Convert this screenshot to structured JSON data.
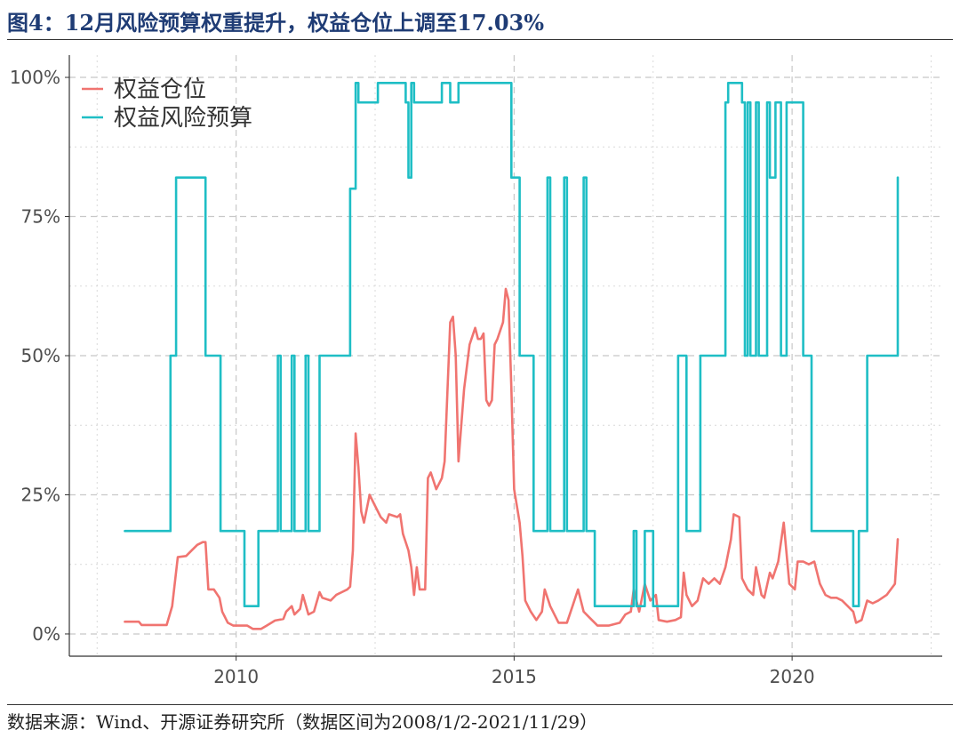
{
  "header": {
    "title": "图4：12月风险预算权重提升，权益仓位上调至17.03%"
  },
  "footer": {
    "source": "数据来源：Wind、开源证券研究所（数据区间为2008/1/2-2021/11/29）"
  },
  "chart_data": {
    "type": "line",
    "title": "图4：12月风险预算权重提升，权益仓位上调至17.03%",
    "xlabel": "",
    "ylabel": "",
    "x_ticks": [
      "2010",
      "2015",
      "2020"
    ],
    "y_ticks": [
      "0%",
      "25%",
      "50%",
      "75%",
      "100%"
    ],
    "xlim": [
      2007.0,
      2022.7
    ],
    "ylim": [
      -0.04,
      1.04
    ],
    "grid": true,
    "legend_position": "top-left",
    "colors": {
      "equity_position": "#f07470",
      "risk_budget": "#1fbec5"
    },
    "series": [
      {
        "name": "权益仓位",
        "color": "#f07470",
        "step": false,
        "points": [
          [
            2008.0,
            0.022
          ],
          [
            2008.25,
            0.022
          ],
          [
            2008.3,
            0.016
          ],
          [
            2008.75,
            0.016
          ],
          [
            2008.85,
            0.05
          ],
          [
            2008.95,
            0.138
          ],
          [
            2009.1,
            0.14
          ],
          [
            2009.2,
            0.15
          ],
          [
            2009.3,
            0.16
          ],
          [
            2009.4,
            0.165
          ],
          [
            2009.45,
            0.165
          ],
          [
            2009.5,
            0.08
          ],
          [
            2009.6,
            0.08
          ],
          [
            2009.7,
            0.065
          ],
          [
            2009.75,
            0.04
          ],
          [
            2009.85,
            0.02
          ],
          [
            2009.95,
            0.015
          ],
          [
            2010.2,
            0.015
          ],
          [
            2010.3,
            0.009
          ],
          [
            2010.45,
            0.009
          ],
          [
            2010.55,
            0.015
          ],
          [
            2010.7,
            0.024
          ],
          [
            2010.85,
            0.027
          ],
          [
            2010.9,
            0.04
          ],
          [
            2011.0,
            0.05
          ],
          [
            2011.05,
            0.035
          ],
          [
            2011.15,
            0.045
          ],
          [
            2011.2,
            0.07
          ],
          [
            2011.3,
            0.035
          ],
          [
            2011.4,
            0.04
          ],
          [
            2011.5,
            0.075
          ],
          [
            2011.55,
            0.065
          ],
          [
            2011.7,
            0.06
          ],
          [
            2011.8,
            0.07
          ],
          [
            2011.9,
            0.075
          ],
          [
            2012.0,
            0.08
          ],
          [
            2012.05,
            0.085
          ],
          [
            2012.1,
            0.15
          ],
          [
            2012.15,
            0.36
          ],
          [
            2012.2,
            0.3
          ],
          [
            2012.25,
            0.22
          ],
          [
            2012.3,
            0.2
          ],
          [
            2012.4,
            0.25
          ],
          [
            2012.5,
            0.23
          ],
          [
            2012.6,
            0.21
          ],
          [
            2012.7,
            0.2
          ],
          [
            2012.75,
            0.215
          ],
          [
            2012.9,
            0.21
          ],
          [
            2012.95,
            0.215
          ],
          [
            2013.0,
            0.18
          ],
          [
            2013.1,
            0.15
          ],
          [
            2013.15,
            0.12
          ],
          [
            2013.2,
            0.07
          ],
          [
            2013.25,
            0.12
          ],
          [
            2013.3,
            0.08
          ],
          [
            2013.4,
            0.08
          ],
          [
            2013.45,
            0.28
          ],
          [
            2013.5,
            0.29
          ],
          [
            2013.6,
            0.26
          ],
          [
            2013.7,
            0.28
          ],
          [
            2013.75,
            0.31
          ],
          [
            2013.85,
            0.56
          ],
          [
            2013.9,
            0.57
          ],
          [
            2013.95,
            0.5
          ],
          [
            2014.0,
            0.31
          ],
          [
            2014.1,
            0.44
          ],
          [
            2014.2,
            0.52
          ],
          [
            2014.3,
            0.55
          ],
          [
            2014.35,
            0.53
          ],
          [
            2014.4,
            0.53
          ],
          [
            2014.45,
            0.54
          ],
          [
            2014.5,
            0.42
          ],
          [
            2014.55,
            0.41
          ],
          [
            2014.6,
            0.42
          ],
          [
            2014.65,
            0.52
          ],
          [
            2014.7,
            0.53
          ],
          [
            2014.8,
            0.56
          ],
          [
            2014.85,
            0.62
          ],
          [
            2014.9,
            0.6
          ],
          [
            2014.95,
            0.44
          ],
          [
            2015.0,
            0.26
          ],
          [
            2015.1,
            0.2
          ],
          [
            2015.15,
            0.14
          ],
          [
            2015.2,
            0.06
          ],
          [
            2015.3,
            0.04
          ],
          [
            2015.4,
            0.025
          ],
          [
            2015.5,
            0.04
          ],
          [
            2015.55,
            0.08
          ],
          [
            2015.65,
            0.05
          ],
          [
            2015.8,
            0.02
          ],
          [
            2015.95,
            0.02
          ],
          [
            2016.05,
            0.05
          ],
          [
            2016.15,
            0.08
          ],
          [
            2016.25,
            0.04
          ],
          [
            2016.35,
            0.03
          ],
          [
            2016.5,
            0.015
          ],
          [
            2016.7,
            0.015
          ],
          [
            2016.9,
            0.02
          ],
          [
            2017.0,
            0.035
          ],
          [
            2017.1,
            0.04
          ],
          [
            2017.15,
            0.08
          ],
          [
            2017.25,
            0.04
          ],
          [
            2017.35,
            0.09
          ],
          [
            2017.45,
            0.06
          ],
          [
            2017.55,
            0.07
          ],
          [
            2017.6,
            0.025
          ],
          [
            2017.75,
            0.022
          ],
          [
            2017.9,
            0.025
          ],
          [
            2018.0,
            0.03
          ],
          [
            2018.05,
            0.11
          ],
          [
            2018.1,
            0.07
          ],
          [
            2018.2,
            0.05
          ],
          [
            2018.3,
            0.06
          ],
          [
            2018.4,
            0.1
          ],
          [
            2018.5,
            0.09
          ],
          [
            2018.6,
            0.1
          ],
          [
            2018.7,
            0.09
          ],
          [
            2018.8,
            0.12
          ],
          [
            2018.9,
            0.17
          ],
          [
            2018.95,
            0.215
          ],
          [
            2019.05,
            0.21
          ],
          [
            2019.1,
            0.1
          ],
          [
            2019.2,
            0.08
          ],
          [
            2019.3,
            0.07
          ],
          [
            2019.35,
            0.12
          ],
          [
            2019.45,
            0.07
          ],
          [
            2019.5,
            0.065
          ],
          [
            2019.6,
            0.11
          ],
          [
            2019.65,
            0.1
          ],
          [
            2019.75,
            0.13
          ],
          [
            2019.85,
            0.2
          ],
          [
            2019.95,
            0.09
          ],
          [
            2020.05,
            0.08
          ],
          [
            2020.1,
            0.13
          ],
          [
            2020.2,
            0.13
          ],
          [
            2020.3,
            0.125
          ],
          [
            2020.4,
            0.13
          ],
          [
            2020.5,
            0.09
          ],
          [
            2020.6,
            0.07
          ],
          [
            2020.7,
            0.065
          ],
          [
            2020.8,
            0.065
          ],
          [
            2020.9,
            0.06
          ],
          [
            2021.0,
            0.05
          ],
          [
            2021.1,
            0.04
          ],
          [
            2021.15,
            0.02
          ],
          [
            2021.25,
            0.025
          ],
          [
            2021.35,
            0.06
          ],
          [
            2021.45,
            0.055
          ],
          [
            2021.55,
            0.06
          ],
          [
            2021.7,
            0.07
          ],
          [
            2021.85,
            0.09
          ],
          [
            2021.9,
            0.1703
          ]
        ]
      },
      {
        "name": "权益风险预算",
        "color": "#1fbec5",
        "step": true,
        "points": [
          [
            2008.0,
            0.185
          ],
          [
            2008.75,
            0.185
          ],
          [
            2008.82,
            0.5
          ],
          [
            2008.92,
            0.82
          ],
          [
            2009.4,
            0.82
          ],
          [
            2009.45,
            0.5
          ],
          [
            2009.65,
            0.5
          ],
          [
            2009.72,
            0.185
          ],
          [
            2010.1,
            0.185
          ],
          [
            2010.15,
            0.05
          ],
          [
            2010.35,
            0.05
          ],
          [
            2010.4,
            0.185
          ],
          [
            2010.7,
            0.185
          ],
          [
            2010.75,
            0.5
          ],
          [
            2010.8,
            0.185
          ],
          [
            2010.95,
            0.185
          ],
          [
            2011.0,
            0.5
          ],
          [
            2011.05,
            0.185
          ],
          [
            2011.2,
            0.185
          ],
          [
            2011.25,
            0.5
          ],
          [
            2011.3,
            0.185
          ],
          [
            2011.45,
            0.185
          ],
          [
            2011.5,
            0.5
          ],
          [
            2012.0,
            0.5
          ],
          [
            2012.05,
            0.8
          ],
          [
            2012.15,
            0.99
          ],
          [
            2012.2,
            0.955
          ],
          [
            2012.5,
            0.955
          ],
          [
            2012.55,
            0.99
          ],
          [
            2013.0,
            0.99
          ],
          [
            2013.05,
            0.955
          ],
          [
            2013.1,
            0.82
          ],
          [
            2013.15,
            0.99
          ],
          [
            2013.2,
            0.955
          ],
          [
            2013.65,
            0.955
          ],
          [
            2013.7,
            0.99
          ],
          [
            2013.8,
            0.99
          ],
          [
            2013.85,
            0.955
          ],
          [
            2013.95,
            0.955
          ],
          [
            2014.0,
            0.99
          ],
          [
            2014.9,
            0.99
          ],
          [
            2014.95,
            0.82
          ],
          [
            2015.05,
            0.82
          ],
          [
            2015.1,
            0.5
          ],
          [
            2015.3,
            0.5
          ],
          [
            2015.35,
            0.185
          ],
          [
            2015.55,
            0.185
          ],
          [
            2015.6,
            0.82
          ],
          [
            2015.65,
            0.185
          ],
          [
            2015.85,
            0.185
          ],
          [
            2015.9,
            0.82
          ],
          [
            2015.95,
            0.185
          ],
          [
            2016.2,
            0.185
          ],
          [
            2016.25,
            0.82
          ],
          [
            2016.3,
            0.185
          ],
          [
            2016.4,
            0.185
          ],
          [
            2016.45,
            0.05
          ],
          [
            2017.1,
            0.05
          ],
          [
            2017.15,
            0.185
          ],
          [
            2017.2,
            0.05
          ],
          [
            2017.3,
            0.05
          ],
          [
            2017.35,
            0.185
          ],
          [
            2017.45,
            0.185
          ],
          [
            2017.5,
            0.05
          ],
          [
            2017.9,
            0.05
          ],
          [
            2017.95,
            0.5
          ],
          [
            2018.05,
            0.5
          ],
          [
            2018.1,
            0.185
          ],
          [
            2018.3,
            0.185
          ],
          [
            2018.35,
            0.5
          ],
          [
            2018.75,
            0.5
          ],
          [
            2018.8,
            0.955
          ],
          [
            2018.85,
            0.99
          ],
          [
            2019.05,
            0.99
          ],
          [
            2019.1,
            0.955
          ],
          [
            2019.15,
            0.5
          ],
          [
            2019.2,
            0.955
          ],
          [
            2019.25,
            0.5
          ],
          [
            2019.3,
            0.5
          ],
          [
            2019.35,
            0.955
          ],
          [
            2019.4,
            0.5
          ],
          [
            2019.5,
            0.5
          ],
          [
            2019.55,
            0.955
          ],
          [
            2019.6,
            0.82
          ],
          [
            2019.7,
            0.955
          ],
          [
            2019.75,
            0.955
          ],
          [
            2019.8,
            0.5
          ],
          [
            2019.85,
            0.5
          ],
          [
            2019.9,
            0.955
          ],
          [
            2020.15,
            0.955
          ],
          [
            2020.2,
            0.5
          ],
          [
            2020.3,
            0.5
          ],
          [
            2020.35,
            0.185
          ],
          [
            2020.75,
            0.185
          ],
          [
            2020.8,
            0.185
          ],
          [
            2021.05,
            0.185
          ],
          [
            2021.1,
            0.05
          ],
          [
            2021.15,
            0.05
          ],
          [
            2021.2,
            0.185
          ],
          [
            2021.3,
            0.185
          ],
          [
            2021.35,
            0.5
          ],
          [
            2021.8,
            0.5
          ],
          [
            2021.85,
            0.5
          ],
          [
            2021.9,
            0.82
          ]
        ]
      }
    ]
  }
}
